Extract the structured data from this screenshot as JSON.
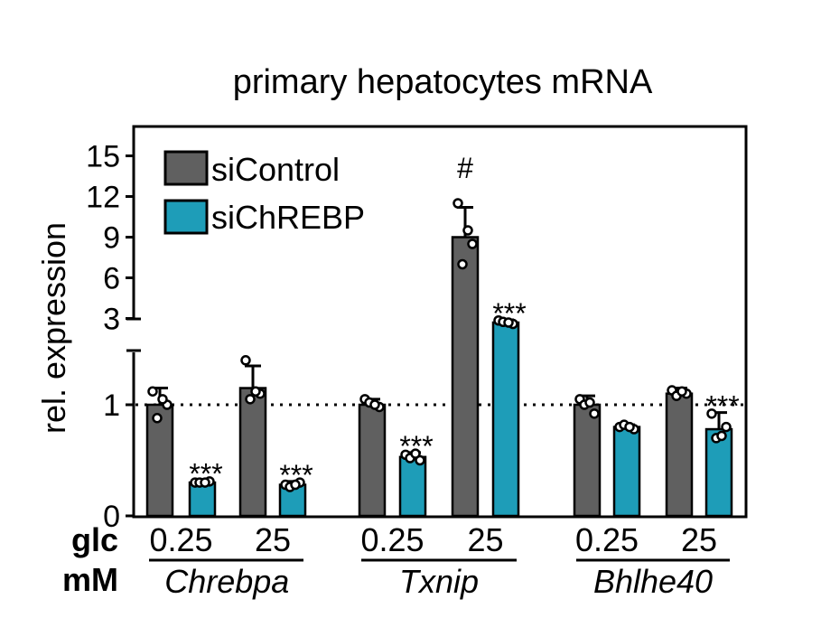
{
  "chart_data": {
    "type": "bar",
    "title": "primary hepatocytes mRNA",
    "ylabel": "rel. expression",
    "xlabel": "",
    "row_labels": [
      "glc",
      "mM"
    ],
    "y_axis": {
      "broken": true,
      "lower_range": [
        0,
        1.5
      ],
      "lower_ticks": [
        "0",
        "1"
      ],
      "upper_range": [
        1.5,
        15
      ],
      "upper_ticks": [
        "3",
        "6",
        "9",
        "12",
        "15"
      ]
    },
    "reference_line": 1,
    "groups": [
      {
        "gene": "Chrebpa",
        "conditions": [
          "0.25",
          "25"
        ]
      },
      {
        "gene": "Txnip",
        "conditions": [
          "0.25",
          "25"
        ]
      },
      {
        "gene": "Bhlhe40",
        "conditions": [
          "0.25",
          "25"
        ]
      }
    ],
    "categories": [
      "Chrebpa 0.25",
      "Chrebpa 25",
      "Txnip 0.25",
      "Txnip 25",
      "Bhlhe40 0.25",
      "Bhlhe40 25"
    ],
    "series": [
      {
        "name": "siControl",
        "color": "#606060",
        "values": [
          1.0,
          1.15,
          1.0,
          9.0,
          1.0,
          1.1
        ],
        "errors": [
          0.15,
          0.2,
          0.05,
          2.2,
          0.08,
          0.05
        ],
        "points": [
          [
            1.12,
            1.0,
            0.88,
            1.05
          ],
          [
            1.4,
            1.1,
            1.05,
            1.12
          ],
          [
            1.05,
            0.98,
            1.02,
            1.0
          ],
          [
            11.5,
            8.5,
            7.0,
            9.5
          ],
          [
            1.05,
            0.92,
            1.0,
            1.02
          ],
          [
            1.13,
            1.1,
            1.08,
            1.12
          ]
        ],
        "annotations": [
          "",
          "",
          "",
          "#",
          "",
          ""
        ]
      },
      {
        "name": "siChREBP",
        "color": "#1e9db8",
        "values": [
          0.3,
          0.28,
          0.53,
          2.7,
          0.8,
          0.78
        ],
        "errors": [
          0.02,
          0.03,
          0.04,
          0.2,
          0.02,
          0.15
        ],
        "points": [
          [
            0.3,
            0.31,
            0.3,
            0.3
          ],
          [
            0.28,
            0.3,
            0.26,
            0.28
          ],
          [
            0.55,
            0.5,
            0.52,
            0.56
          ],
          [
            2.85,
            2.6,
            2.75,
            2.7
          ],
          [
            0.8,
            0.78,
            0.82,
            0.8
          ],
          [
            0.92,
            0.8,
            0.7,
            0.72
          ]
        ],
        "annotations": [
          "***",
          "***",
          "***",
          "***",
          "",
          "***"
        ]
      }
    ],
    "legend": {
      "position": "top-left",
      "entries": [
        "siControl",
        "siChREBP"
      ]
    },
    "grid": false
  }
}
